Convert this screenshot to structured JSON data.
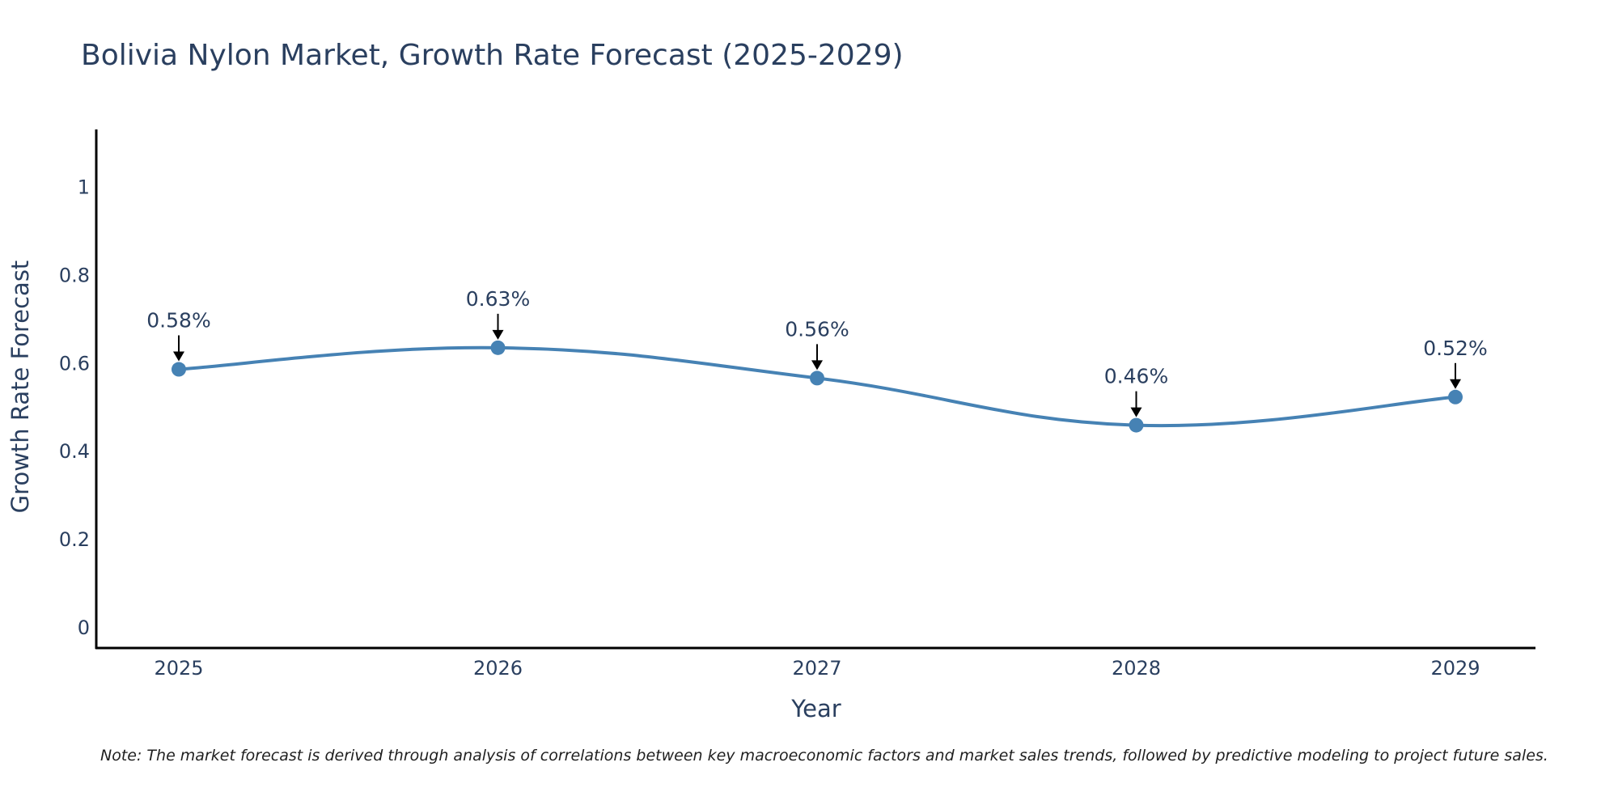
{
  "chart_data": {
    "type": "line",
    "title": "Bolivia Nylon Market, Growth Rate Forecast (2025-2029)",
    "xlabel": "Year",
    "ylabel": "Growth Rate Forecast",
    "categories": [
      "2025",
      "2026",
      "2027",
      "2028",
      "2029"
    ],
    "series": [
      {
        "name": "Growth Rate Forecast",
        "values": [
          0.585,
          0.634,
          0.565,
          0.458,
          0.522
        ],
        "labels": [
          "0.58%",
          "0.63%",
          "0.56%",
          "0.46%",
          "0.52%"
        ],
        "color": "#4682b4",
        "line_shape": "spline"
      }
    ],
    "y_ticks": [
      "0",
      "0.2",
      "0.4",
      "0.6",
      "0.8",
      "1"
    ],
    "ylim": [
      -0.05,
      1.13
    ],
    "grid": false,
    "legend": "none",
    "note": "Note: The market forecast is derived through analysis of correlations between key macroeconomic factors and market sales trends, followed by predictive modeling to project future sales."
  },
  "colors": {
    "text": "#2a3f5f",
    "axis": "#000000",
    "line": "#4682b4",
    "arrow": "#000000"
  }
}
